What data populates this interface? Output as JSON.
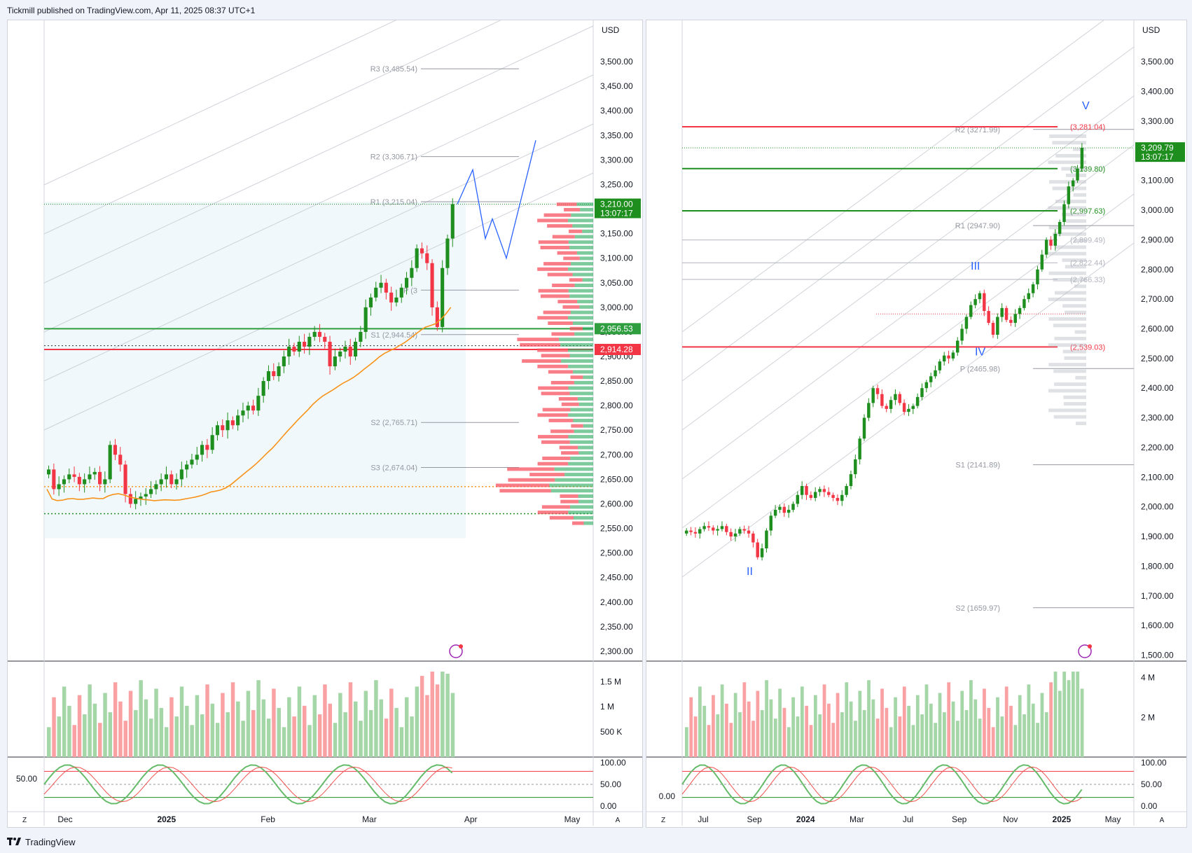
{
  "header": {
    "title": "Tickmill published on TradingView.com, Apr 11, 2025 08:37 UTC+1"
  },
  "footer": {
    "brand": "TradingView",
    "logo_icon": "tradingview-logo-icon"
  },
  "colors": {
    "up": "#089981",
    "upfill": "#1e8e1e",
    "down": "#f23645",
    "accent": "#2962ff",
    "orange": "#f7931a",
    "grid": "#f0f3fa"
  },
  "chart_data": [
    {
      "type": "candlestick",
      "currency": "USD",
      "price_axis_ticks": [
        "3,500.00",
        "3,450.00",
        "3,400.00",
        "3,350.00",
        "3,300.00",
        "3,250.00",
        "3,200.00",
        "3,150.00",
        "3,100.00",
        "3,050.00",
        "3,000.00",
        "2,950.00",
        "2,900.00",
        "2,850.00",
        "2,800.00",
        "2,750.00",
        "2,700.00",
        "2,650.00",
        "2,600.00",
        "2,550.00",
        "2,500.00",
        "2,450.00",
        "2,400.00",
        "2,350.00",
        "2,300.00"
      ],
      "ylim": [
        2280,
        3530
      ],
      "time_axis_labels": [
        "Dec",
        "2025",
        "Feb",
        "Mar",
        "Apr",
        "May"
      ],
      "pivot_levels": [
        {
          "label": "R3 (3,485.54)",
          "value": 3485.54
        },
        {
          "label": "R2 (3,306.71)",
          "value": 3306.71
        },
        {
          "label": "R1 (3,215.04)",
          "value": 3215.04
        },
        {
          "label": "P (3",
          "value": 3035
        },
        {
          "label": "S1 (2,944.54)",
          "value": 2944.54
        },
        {
          "label": "S2 (2,765.71)",
          "value": 2765.71
        },
        {
          "label": "S3 (2,674.04)",
          "value": 2674.04
        }
      ],
      "price_labels": [
        {
          "text": "3,210.00",
          "sub": "13:07:17",
          "value": 3210.0,
          "color": "#1e8e1e"
        },
        {
          "text": "2,956.53",
          "value": 2956.53,
          "color": "#2e9e3e"
        },
        {
          "text": "2,914.28",
          "value": 2914.28,
          "color": "#f23645"
        }
      ],
      "close_series": [
        2670,
        2630,
        2640,
        2650,
        2660,
        2655,
        2640,
        2650,
        2660,
        2665,
        2640,
        2650,
        2720,
        2700,
        2680,
        2620,
        2600,
        2610,
        2615,
        2620,
        2630,
        2640,
        2650,
        2660,
        2640,
        2650,
        2670,
        2680,
        2690,
        2700,
        2720,
        2710,
        2740,
        2760,
        2750,
        2770,
        2760,
        2780,
        2790,
        2800,
        2790,
        2820,
        2850,
        2870,
        2860,
        2880,
        2900,
        2920,
        2910,
        2930,
        2920,
        2940,
        2950,
        2940,
        2930,
        2880,
        2900,
        2910,
        2920,
        2900,
        2930,
        2950,
        3000,
        3020,
        3040,
        3050,
        3030,
        3010,
        3020,
        3040,
        3060,
        3080,
        3120,
        3110,
        3090,
        3000,
        2960,
        3080,
        3140,
        3210
      ],
      "volume_axis_ticks": [
        "1.5 M",
        "1 M",
        "500 K"
      ],
      "volume_max": 1700000,
      "oscillator": {
        "label": "50.00",
        "ticks": [
          "100.00",
          "50.00",
          "0.00"
        ]
      }
    },
    {
      "type": "candlestick",
      "currency": "USD",
      "price_axis_ticks": [
        "3,500.00",
        "3,400.00",
        "3,300.00",
        "3,200.00",
        "3,100.00",
        "3,000.00",
        "2,900.00",
        "2,800.00",
        "2,700.00",
        "2,600.00",
        "2,500.00",
        "2,400.00",
        "2,300.00",
        "2,200.00",
        "2,100.00",
        "2,000.00",
        "1,900.00",
        "1,800.00",
        "1,700.00",
        "1,600.00",
        "1,500.00"
      ],
      "ylim": [
        1480,
        3550
      ],
      "time_axis_labels": [
        "Jul",
        "Sep",
        "2024",
        "Mar",
        "Jul",
        "Sep",
        "Nov",
        "2025",
        "May"
      ],
      "pivot_levels": [
        {
          "label": "R2 (3271.99)",
          "value": 3271.99
        },
        {
          "label": "R1 (2947.90)",
          "value": 2947.9
        },
        {
          "label": "P (2465.98)",
          "value": 2465.98
        },
        {
          "label": "S1 (2141.89)",
          "value": 2141.89
        },
        {
          "label": "S2 (1659.97)",
          "value": 1659.97
        }
      ],
      "fib_levels": [
        {
          "label": "(3,281.04)",
          "value": 3281.04,
          "color": "#f23645"
        },
        {
          "label": "(3,139.80)",
          "value": 3139.8,
          "color": "#1e8e1e"
        },
        {
          "label": "(2,997.63)",
          "value": 2997.63,
          "color": "#1e8e1e"
        },
        {
          "label": "(2,899.49)",
          "value": 2899.49,
          "color": "#b2b5be"
        },
        {
          "label": "(2,822.44)",
          "value": 2822.44,
          "color": "#b2b5be"
        },
        {
          "label": "(2,766.33)",
          "value": 2766.33,
          "color": "#b2b5be"
        },
        {
          "label": "(2,539.03)",
          "value": 2539.03,
          "color": "#f23645"
        }
      ],
      "wave_labels": [
        "II",
        "III",
        "IV",
        "V"
      ],
      "price_labels": [
        {
          "text": "3,209.79",
          "sub": "13:07:17",
          "value": 3209.79,
          "color": "#1e8e1e"
        }
      ],
      "close_series": [
        1920,
        1915,
        1910,
        1925,
        1935,
        1930,
        1920,
        1925,
        1935,
        1915,
        1900,
        1910,
        1925,
        1920,
        1910,
        1880,
        1830,
        1860,
        1920,
        1970,
        1990,
        2000,
        1980,
        1990,
        2010,
        2040,
        2070,
        2040,
        2030,
        2050,
        2060,
        2050,
        2040,
        2030,
        2020,
        2040,
        2070,
        2110,
        2160,
        2230,
        2300,
        2350,
        2400,
        2380,
        2340,
        2330,
        2360,
        2380,
        2350,
        2320,
        2330,
        2340,
        2370,
        2400,
        2420,
        2440,
        2460,
        2490,
        2510,
        2500,
        2520,
        2560,
        2600,
        2640,
        2680,
        2700,
        2720,
        2660,
        2620,
        2580,
        2640,
        2670,
        2630,
        2620,
        2650,
        2670,
        2700,
        2720,
        2750,
        2800,
        2850,
        2900,
        2880,
        2920,
        2960,
        3020,
        3080,
        3100,
        3140,
        3210
      ],
      "volume_axis_ticks": [
        "4 M",
        "2 M"
      ],
      "volume_max": 4300000,
      "oscillator": {
        "label": "0.00",
        "ticks": [
          "100.00",
          "50.00",
          "0.00"
        ]
      }
    }
  ],
  "buttons": {
    "left": "Z",
    "right": "A"
  }
}
